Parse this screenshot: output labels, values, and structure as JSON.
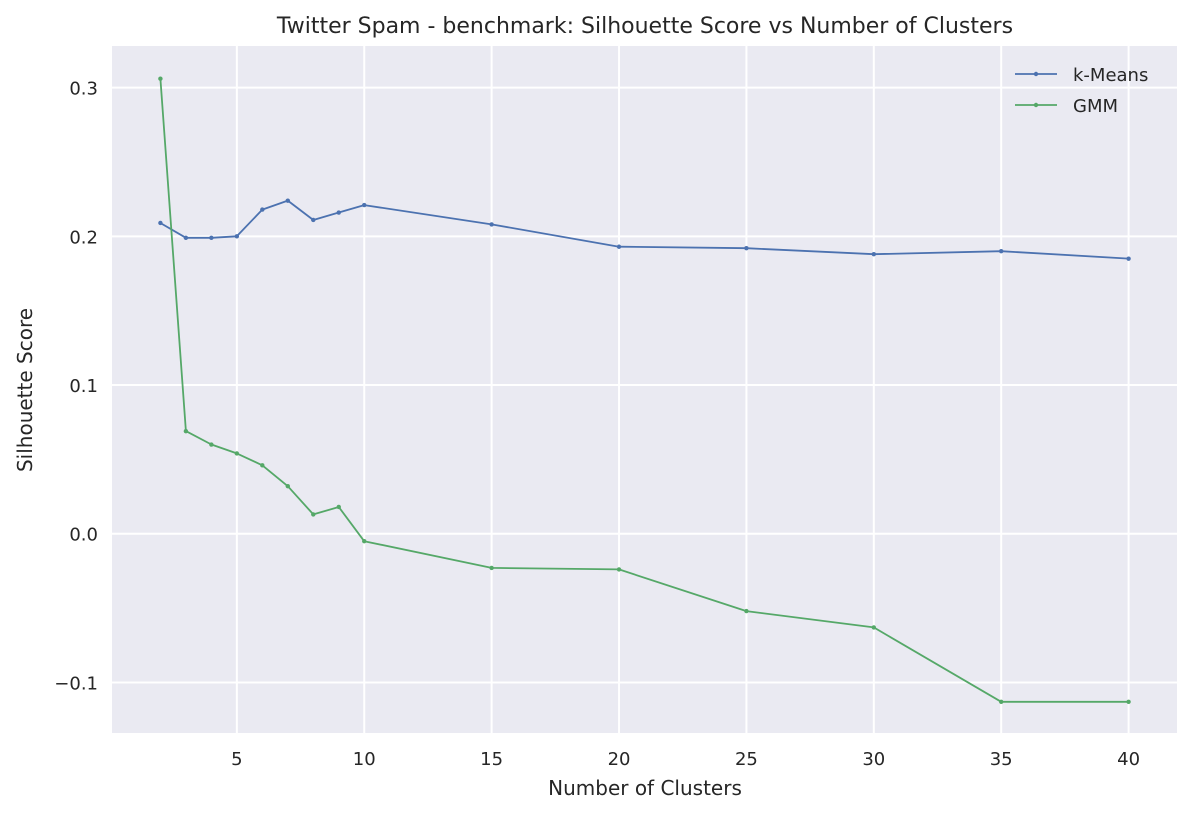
{
  "chart_data": {
    "type": "line",
    "title": "Twitter Spam - benchmark: Silhouette Score vs Number of Clusters",
    "xlabel": "Number of Clusters",
    "ylabel": "Silhouette Score",
    "xlim": [
      0.1,
      41.9
    ],
    "ylim": [
      -0.134,
      0.328
    ],
    "xticks": [
      5,
      10,
      15,
      20,
      25,
      30,
      35,
      40
    ],
    "yticks": [
      -0.1,
      0.0,
      0.1,
      0.2,
      0.3
    ],
    "ytick_labels": [
      "−0.1",
      "0.0",
      "0.1",
      "0.2",
      "0.3"
    ],
    "grid": true,
    "legend_position": "top-right",
    "background": "#eaeaf2",
    "x": [
      2,
      3,
      4,
      5,
      6,
      7,
      8,
      9,
      10,
      15,
      20,
      25,
      30,
      35,
      40
    ],
    "series": [
      {
        "name": "k-Means",
        "color": "#4c72b0",
        "values": [
          0.209,
          0.199,
          0.199,
          0.2,
          0.218,
          0.224,
          0.211,
          0.216,
          0.221,
          0.208,
          0.193,
          0.192,
          0.188,
          0.19,
          0.185
        ]
      },
      {
        "name": "GMM",
        "color": "#55a868",
        "values": [
          0.306,
          0.069,
          0.06,
          0.054,
          0.046,
          0.032,
          0.013,
          0.018,
          -0.005,
          -0.023,
          -0.024,
          -0.052,
          -0.063,
          -0.113,
          -0.113
        ]
      }
    ]
  }
}
